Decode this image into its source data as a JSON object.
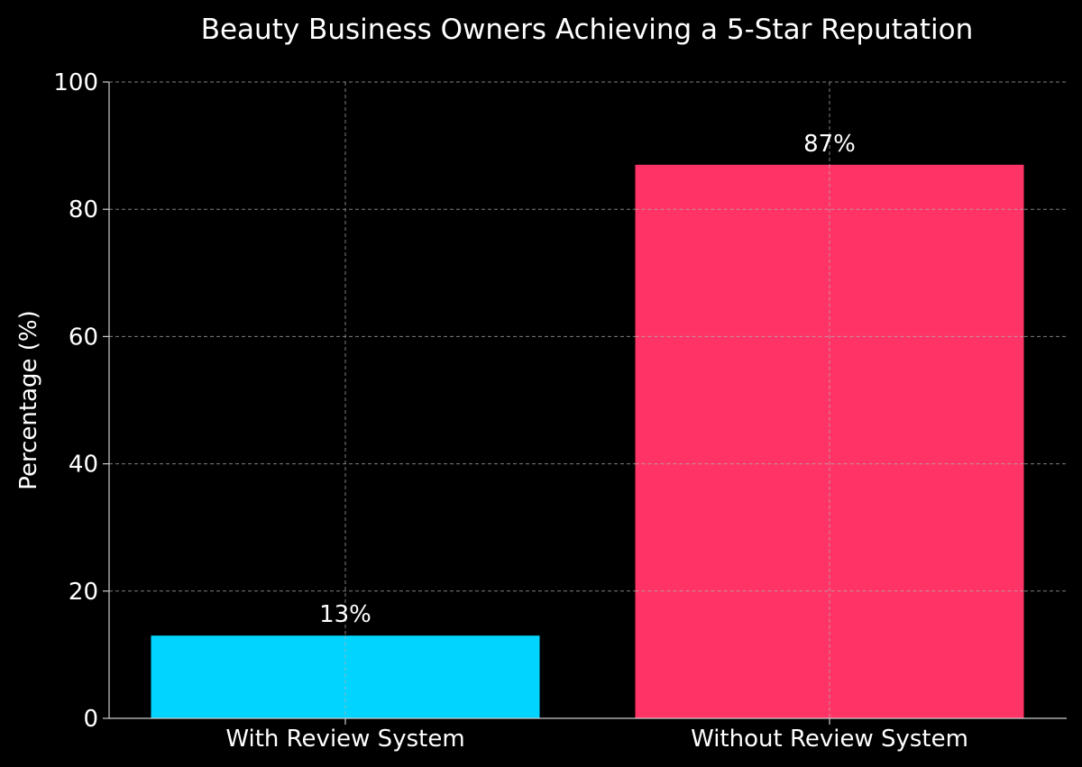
{
  "chart_data": {
    "type": "bar",
    "title": "Beauty Business Owners Achieving a 5-Star Reputation",
    "xlabel": "",
    "ylabel": "Percentage (%)",
    "categories": [
      "With Review System",
      "Without Review System"
    ],
    "values": [
      13,
      87
    ],
    "value_labels": [
      "13%",
      "87%"
    ],
    "colors": [
      "#00d4ff",
      "#ff3366"
    ],
    "ylim": [
      0,
      100
    ],
    "yticks": [
      0,
      20,
      40,
      60,
      80,
      100
    ],
    "grid": true,
    "legend": false
  },
  "style": {
    "background": "#000000",
    "text_color": "#ffffff",
    "grid_color": "#8c8c8c",
    "axis_color": "#cccccc"
  }
}
